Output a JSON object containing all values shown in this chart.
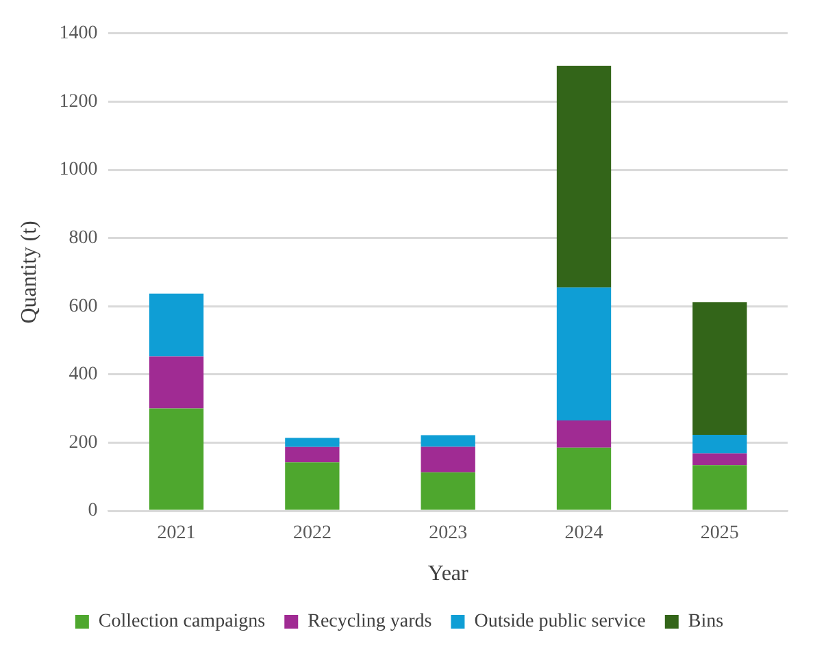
{
  "chart_data": {
    "type": "bar",
    "stacked": true,
    "xlabel": "Year",
    "ylabel": "Quantity (t)",
    "categories": [
      "2021",
      "2022",
      "2023",
      "2024",
      "2025"
    ],
    "series": [
      {
        "name": "Collection campaigns",
        "color": "#4ea72e",
        "values": [
          300,
          142,
          113,
          185,
          134
        ]
      },
      {
        "name": "Recycling yards",
        "color": "#a02b93",
        "values": [
          153,
          45,
          75,
          80,
          34
        ]
      },
      {
        "name": "Outside public service",
        "color": "#0f9ed5",
        "values": [
          184,
          27,
          34,
          390,
          55
        ]
      },
      {
        "name": "Bins",
        "color": "#336519",
        "values": [
          null,
          null,
          null,
          650,
          389
        ]
      }
    ],
    "ylim": [
      0,
      1400
    ],
    "yticks": [
      0,
      200,
      400,
      600,
      800,
      1000,
      1200,
      1400
    ],
    "grid": "y",
    "legend": "bottom"
  }
}
